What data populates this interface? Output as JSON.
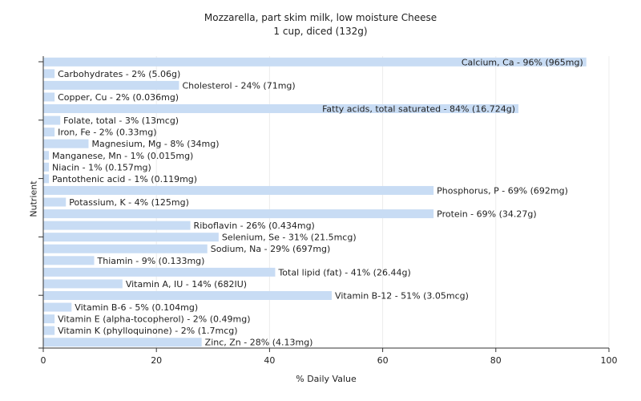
{
  "chart_data": {
    "type": "bar",
    "orientation": "horizontal",
    "title": "Mozzarella, part skim milk, low moisture Cheese",
    "subtitle": "1 cup, diced (132g)",
    "xlabel": "% Daily Value",
    "ylabel": "Nutrient",
    "xlim": [
      0,
      100
    ],
    "xticks": [
      0,
      20,
      40,
      60,
      80,
      100
    ],
    "grid": true,
    "bar_color": "#c8dcf4",
    "categories": [
      "Calcium, Ca",
      "Carbohydrates",
      "Cholesterol",
      "Copper, Cu",
      "Fatty acids, total saturated",
      "Folate, total",
      "Iron, Fe",
      "Magnesium, Mg",
      "Manganese, Mn",
      "Niacin",
      "Pantothenic acid",
      "Phosphorus, P",
      "Potassium, K",
      "Protein",
      "Riboflavin",
      "Selenium, Se",
      "Sodium, Na",
      "Thiamin",
      "Total lipid (fat)",
      "Vitamin A, IU",
      "Vitamin B-12",
      "Vitamin B-6",
      "Vitamin E (alpha-tocopherol)",
      "Vitamin K (phylloquinone)",
      "Zinc, Zn"
    ],
    "values": [
      96,
      2,
      24,
      2,
      84,
      3,
      2,
      8,
      1,
      1,
      1,
      69,
      4,
      69,
      26,
      31,
      29,
      9,
      41,
      14,
      51,
      5,
      2,
      2,
      28
    ],
    "labels": [
      "Calcium, Ca - 96% (965mg)",
      "Carbohydrates - 2% (5.06g)",
      "Cholesterol - 24% (71mg)",
      "Copper, Cu - 2% (0.036mg)",
      "Fatty acids, total saturated - 84% (16.724g)",
      "Folate, total - 3% (13mcg)",
      "Iron, Fe - 2% (0.33mg)",
      "Magnesium, Mg - 8% (34mg)",
      "Manganese, Mn - 1% (0.015mg)",
      "Niacin - 1% (0.157mg)",
      "Pantothenic acid - 1% (0.119mg)",
      "Phosphorus, P - 69% (692mg)",
      "Potassium, K - 4% (125mg)",
      "Protein - 69% (34.27g)",
      "Riboflavin - 26% (0.434mg)",
      "Selenium, Se - 31% (21.5mcg)",
      "Sodium, Na - 29% (697mg)",
      "Thiamin - 9% (0.133mg)",
      "Total lipid (fat) - 41% (26.44g)",
      "Vitamin A, IU - 14% (682IU)",
      "Vitamin B-12 - 51% (3.05mcg)",
      "Vitamin B-6 - 5% (0.104mg)",
      "Vitamin E (alpha-tocopherol) - 2% (0.49mg)",
      "Vitamin K (phylloquinone) - 2% (1.7mcg)",
      "Zinc, Zn - 28% (4.13mg)"
    ],
    "label_inside": [
      true,
      false,
      false,
      false,
      true,
      false,
      false,
      false,
      false,
      false,
      false,
      false,
      false,
      false,
      false,
      false,
      false,
      false,
      false,
      false,
      false,
      false,
      false,
      false,
      false
    ]
  }
}
